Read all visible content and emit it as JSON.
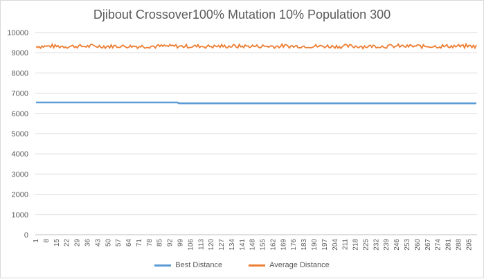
{
  "chart_data": {
    "type": "line",
    "title": "Djibout Crossover100% Mutation 10% Population 300",
    "xlabel": "",
    "ylabel": "",
    "x": {
      "start": 1,
      "end": 300,
      "label_step": 7
    },
    "ylim": [
      0,
      10000
    ],
    "yticks": [
      0,
      1000,
      2000,
      3000,
      4000,
      5000,
      6000,
      7000,
      8000,
      9000,
      10000
    ],
    "grid": "horizontal",
    "legend_position": "bottom",
    "series": [
      {
        "name": "Best Distance",
        "color": "#5b9bd5",
        "segments": [
          {
            "from": 1,
            "to": 97,
            "value": 6540
          },
          {
            "from": 98,
            "to": 300,
            "value": 6500
          }
        ]
      },
      {
        "name": "Average Distance",
        "color": "#ed7d31",
        "mean": 9320,
        "amplitude": 120
      }
    ]
  }
}
